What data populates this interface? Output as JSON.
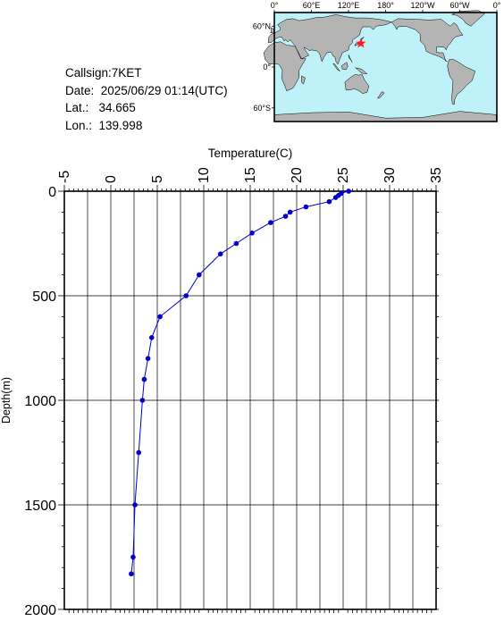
{
  "station": {
    "callsign_line": "Callsign:7KET",
    "date_line": "Date:  2025/06/29 01:14(UTC)",
    "lat_line": "Lat.:   34.665",
    "lon_line": "Lon.:  139.998"
  },
  "map": {
    "lon_labels": [
      "0°",
      "60°E",
      "120°E",
      "180°",
      "120°W",
      "60°W",
      "0°"
    ],
    "lat_labels": [
      "60°N",
      "0°",
      "60°S"
    ],
    "marker": {
      "lon": 139.998,
      "lat": 34.665
    },
    "colors": {
      "ocean": "#bff2f8",
      "land": "#b4b4b4",
      "marker": "#ff1a1a"
    }
  },
  "chart_data": {
    "type": "line",
    "title": "",
    "xlabel": "Temperature(C)",
    "ylabel": "Depth(m)",
    "xlim": [
      -5,
      35
    ],
    "ylim": [
      2000,
      0
    ],
    "x_ticks": [
      "-5",
      "0",
      "5",
      "10",
      "15",
      "20",
      "25",
      "30",
      "35"
    ],
    "y_ticks": [
      "0",
      "500",
      "1000",
      "1500",
      "2000"
    ],
    "grid": true,
    "series": [
      {
        "color": "#0000cc",
        "points": [
          {
            "t": 25.6,
            "d": 0
          },
          {
            "t": 24.8,
            "d": 10
          },
          {
            "t": 24.5,
            "d": 20
          },
          {
            "t": 24.2,
            "d": 30
          },
          {
            "t": 23.5,
            "d": 50
          },
          {
            "t": 21.0,
            "d": 75
          },
          {
            "t": 19.3,
            "d": 100
          },
          {
            "t": 18.8,
            "d": 120
          },
          {
            "t": 17.2,
            "d": 150
          },
          {
            "t": 15.2,
            "d": 200
          },
          {
            "t": 13.5,
            "d": 250
          },
          {
            "t": 11.8,
            "d": 300
          },
          {
            "t": 9.5,
            "d": 400
          },
          {
            "t": 8.1,
            "d": 500
          },
          {
            "t": 5.3,
            "d": 600
          },
          {
            "t": 4.4,
            "d": 700
          },
          {
            "t": 4.0,
            "d": 800
          },
          {
            "t": 3.6,
            "d": 900
          },
          {
            "t": 3.4,
            "d": 1000
          },
          {
            "t": 3.0,
            "d": 1250
          },
          {
            "t": 2.6,
            "d": 1500
          },
          {
            "t": 2.4,
            "d": 1750
          },
          {
            "t": 2.2,
            "d": 1830
          }
        ]
      }
    ]
  }
}
